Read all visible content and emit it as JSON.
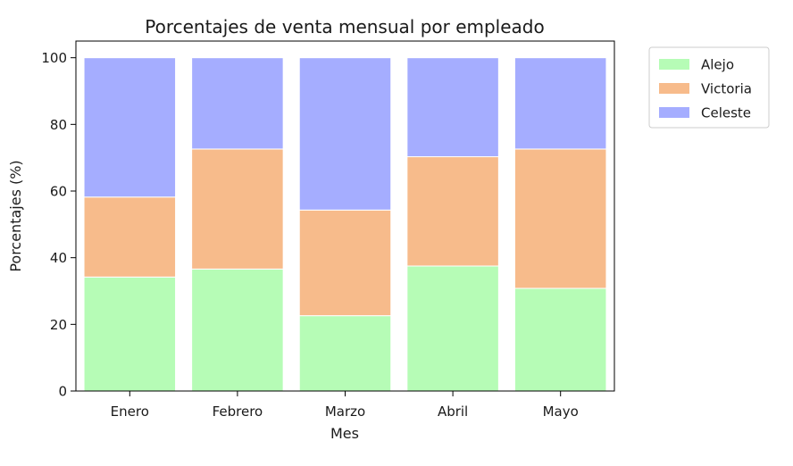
{
  "chart_data": {
    "type": "bar",
    "stacked": true,
    "title": "Porcentajes de venta mensual por empleado",
    "xlabel": "Mes",
    "ylabel": "Porcentajes (%)",
    "categories": [
      "Enero",
      "Febrero",
      "Marzo",
      "Abril",
      "Mayo"
    ],
    "ylim": [
      0,
      105
    ],
    "yticks": [
      0,
      20,
      40,
      60,
      80,
      100
    ],
    "grid": false,
    "legend_position": "outside-top-right",
    "series": [
      {
        "name": "Alejo",
        "color": "#b6fcb6",
        "values": [
          34.2,
          36.6,
          22.6,
          37.5,
          30.8
        ]
      },
      {
        "name": "Victoria",
        "color": "#f7bb8b",
        "values": [
          24.0,
          36.0,
          31.7,
          32.8,
          41.8
        ]
      },
      {
        "name": "Celeste",
        "color": "#a5adff",
        "values": [
          41.8,
          27.4,
          45.7,
          29.7,
          27.4
        ]
      }
    ]
  }
}
